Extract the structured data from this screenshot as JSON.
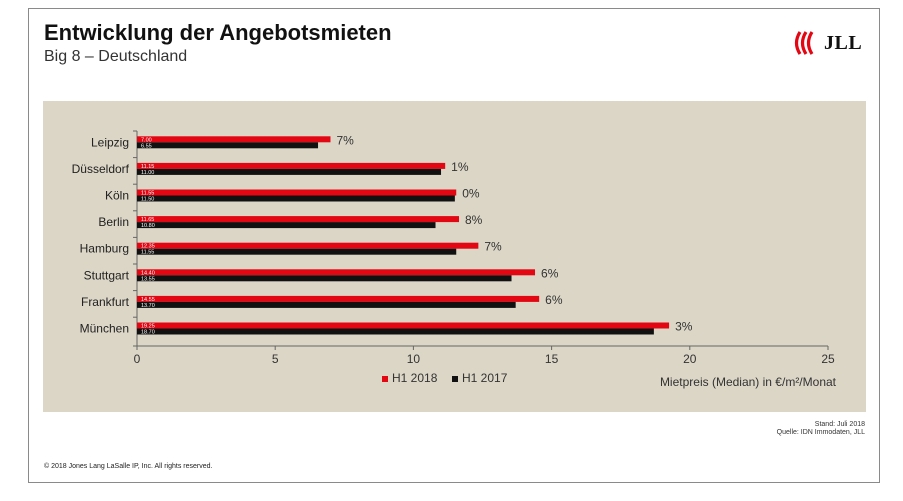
{
  "title": "Entwicklung der Angebotsmieten",
  "subtitle": "Big 8 – Deutschland",
  "logo": {
    "text": "JLL",
    "color": "#e30613"
  },
  "footer": {
    "stand": "Stand: Juli 2018",
    "quelle": "Quelle: IDN Immodaten, JLL",
    "copyright": "© 2018 Jones Lang LaSalle IP, Inc. All rights reserved."
  },
  "chart_data": {
    "type": "bar",
    "orientation": "horizontal",
    "categories": [
      "Leipzig",
      "Düsseldorf",
      "Köln",
      "Berlin",
      "Hamburg",
      "Stuttgart",
      "Frankfurt",
      "München"
    ],
    "series": [
      {
        "name": "H1 2018",
        "color": "#e30613",
        "values": [
          7.0,
          11.15,
          11.55,
          11.65,
          12.35,
          14.4,
          14.55,
          19.25
        ],
        "labels": [
          "7.00",
          "11.15",
          "11.55",
          "11.65",
          "12.35",
          "14.40",
          "14.55",
          "19.25"
        ]
      },
      {
        "name": "H1 2017",
        "color": "#111111",
        "values": [
          6.55,
          11.0,
          11.5,
          10.8,
          11.55,
          13.55,
          13.7,
          18.7
        ],
        "labels": [
          "6.55",
          "11.00",
          "11.50",
          "10.80",
          "11.55",
          "13.55",
          "13.70",
          "18.70"
        ]
      }
    ],
    "change_labels": [
      "7%",
      "1%",
      "0%",
      "8%",
      "7%",
      "6%",
      "6%",
      "3%"
    ],
    "xlim": [
      0,
      25
    ],
    "xticks": [
      0,
      5,
      10,
      15,
      20,
      25
    ],
    "xtick_labels": [
      "0",
      "5",
      "10",
      "15",
      "20",
      "25"
    ],
    "xlabel": "Mietpreis (Median) in €/m²/Monat",
    "ylabel": "",
    "legend": "bottom-center",
    "grid": false,
    "background": "#dcd6c7"
  }
}
